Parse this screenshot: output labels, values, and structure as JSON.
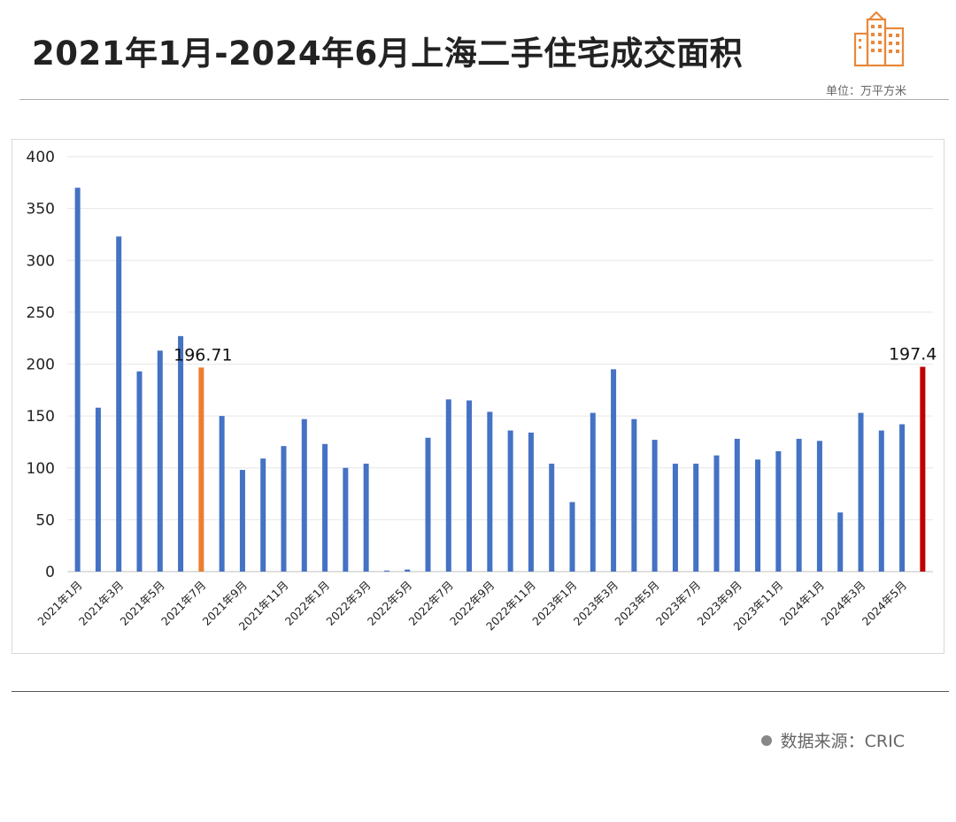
{
  "header": {
    "title": "2021年1月-2024年6月上海二手住宅成交面积",
    "unit": "单位：万平方米"
  },
  "footer": {
    "source": "数据来源：CRIC"
  },
  "colors": {
    "bar": "#4472c4",
    "highlight_2021_07": "#ed7d31",
    "highlight_2024_06": "#c00000",
    "logo": "#e8883a"
  },
  "icons": {
    "logo": "building-skyline-icon"
  },
  "chart_data": {
    "type": "bar",
    "title": "",
    "xlabel": "",
    "ylabel": "",
    "ylim": [
      0,
      400
    ],
    "yticks": [
      0,
      50,
      100,
      150,
      200,
      250,
      300,
      350,
      400
    ],
    "grid": true,
    "legend": "none",
    "categories": [
      "2021年1月",
      "2021年2月",
      "2021年3月",
      "2021年4月",
      "2021年5月",
      "2021年6月",
      "2021年7月",
      "2021年8月",
      "2021年9月",
      "2021年10月",
      "2021年11月",
      "2021年12月",
      "2022年1月",
      "2022年2月",
      "2022年3月",
      "2022年4月",
      "2022年5月",
      "2022年6月",
      "2022年7月",
      "2022年8月",
      "2022年9月",
      "2022年10月",
      "2022年11月",
      "2022年12月",
      "2023年1月",
      "2023年2月",
      "2023年3月",
      "2023年4月",
      "2023年5月",
      "2023年6月",
      "2023年7月",
      "2023年8月",
      "2023年9月",
      "2023年10月",
      "2023年11月",
      "2023年12月",
      "2024年1月",
      "2024年2月",
      "2024年3月",
      "2024年4月",
      "2024年5月",
      "2024年6月"
    ],
    "tick_labels": [
      "2021年1月",
      "2021年3月",
      "2021年5月",
      "2021年7月",
      "2021年9月",
      "2021年11月",
      "2022年1月",
      "2022年3月",
      "2022年5月",
      "2022年7月",
      "2022年9月",
      "2022年11月",
      "2023年1月",
      "2023年3月",
      "2023年5月",
      "2023年7月",
      "2023年9月",
      "2023年11月",
      "2024年1月",
      "2024年3月",
      "2024年5月"
    ],
    "values": [
      370,
      158,
      323,
      193,
      213,
      227,
      196.71,
      150,
      98,
      109,
      121,
      147,
      123,
      100,
      104,
      1,
      2,
      129,
      166,
      165,
      154,
      136,
      134,
      104,
      67,
      153,
      195,
      147,
      127,
      104,
      104,
      112,
      128,
      108,
      116,
      128,
      126,
      57,
      153,
      136,
      142,
      197.4
    ],
    "data_labels": [
      {
        "category": "2021年7月",
        "text": "196.71"
      },
      {
        "category": "2024年6月",
        "text": "197.4"
      }
    ]
  }
}
